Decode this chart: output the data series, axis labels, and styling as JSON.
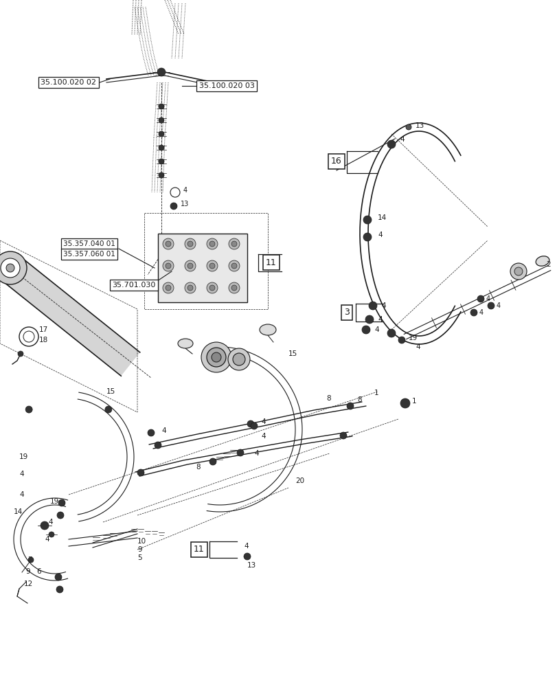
{
  "bg_color": "#ffffff",
  "line_color": "#1a1a1a",
  "box_color": "#ffffff",
  "box_border": "#1a1a1a",
  "fig_width": 8.12,
  "fig_height": 10.0,
  "dpi": 100,
  "labels": {
    "ref1": "35.100.020 02",
    "ref2": "35.100.020 03",
    "ref3": "35.357.040 01",
    "ref4": "35.357.060 01",
    "ref5": "35.701.030",
    "b11a": "11",
    "b16": "16",
    "b3": "3",
    "b11b": "11"
  }
}
